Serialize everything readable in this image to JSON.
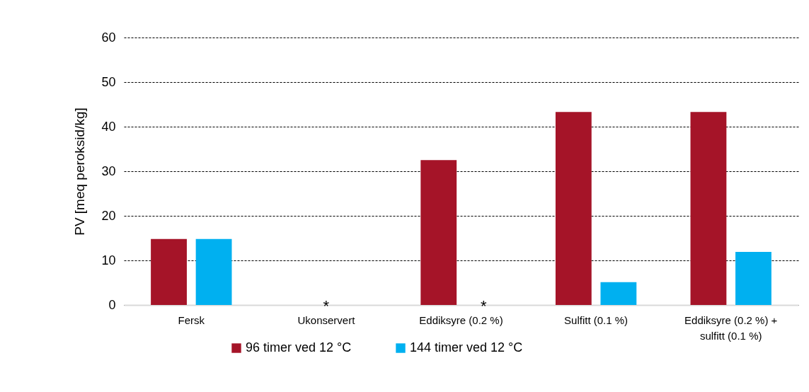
{
  "chart_data": {
    "type": "bar",
    "ylabel": "PV [meq peroksid/kg]",
    "categories": [
      "Fersk",
      "Ukonservert",
      "Eddiksyre (0.2 %)",
      "Sulfitt (0.1 %)",
      "Eddiksyre (0.2 %) + sulfitt (0.1 %)"
    ],
    "series": [
      {
        "name": "96 timer ved 12 °C",
        "color": "#a51428",
        "values": [
          14.8,
          null,
          32.5,
          43.3,
          43.3
        ]
      },
      {
        "name": "144 timer ved 12 °C",
        "color": "#00b0f0",
        "values": [
          14.8,
          null,
          null,
          5.1,
          11.9
        ]
      }
    ],
    "ylim": [
      0,
      60
    ],
    "yticks": [
      0,
      10,
      20,
      30,
      40,
      50,
      60
    ],
    "grid": "y",
    "legend": "bottom",
    "annotations": [
      "*",
      "*"
    ]
  }
}
